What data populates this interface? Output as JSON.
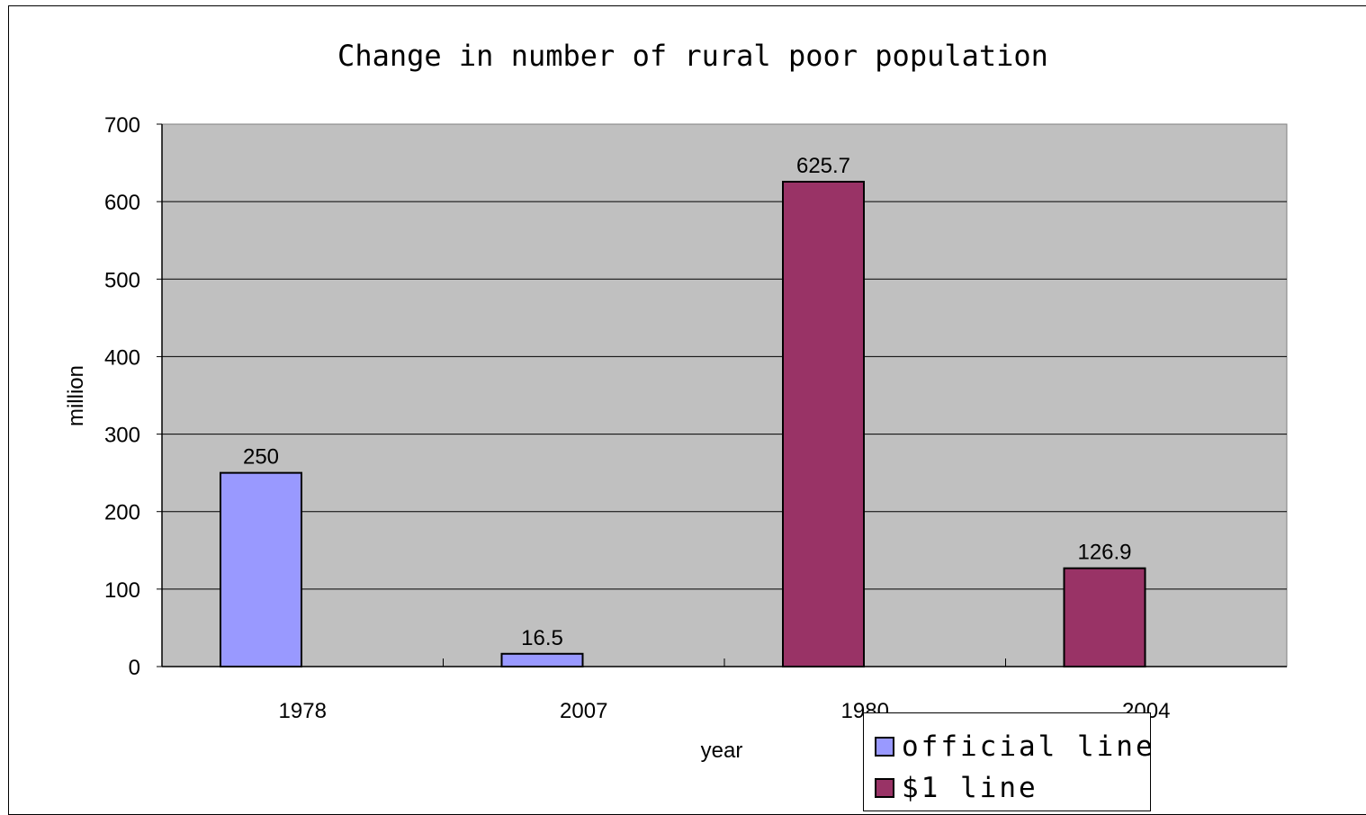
{
  "chart_data": {
    "type": "bar",
    "title": "Change in number of rural poor population",
    "xlabel": "year",
    "ylabel": "million",
    "ylim": [
      0,
      700
    ],
    "yticks": [
      0,
      100,
      200,
      300,
      400,
      500,
      600,
      700
    ],
    "categories": [
      "1978",
      "2007",
      "1980",
      "2004"
    ],
    "series": [
      {
        "name": "official line",
        "color": "#9999ff",
        "values": [
          250,
          16.5,
          null,
          null
        ],
        "labels": [
          "250",
          "16.5",
          null,
          null
        ]
      },
      {
        "name": "$1 line",
        "color": "#993366",
        "values": [
          null,
          null,
          625.7,
          126.9
        ],
        "labels": [
          null,
          null,
          "625.7",
          "126.9"
        ]
      }
    ],
    "grid": true,
    "plot_background": "#c0c0c0",
    "legend": {
      "position": "bottom-right"
    }
  }
}
